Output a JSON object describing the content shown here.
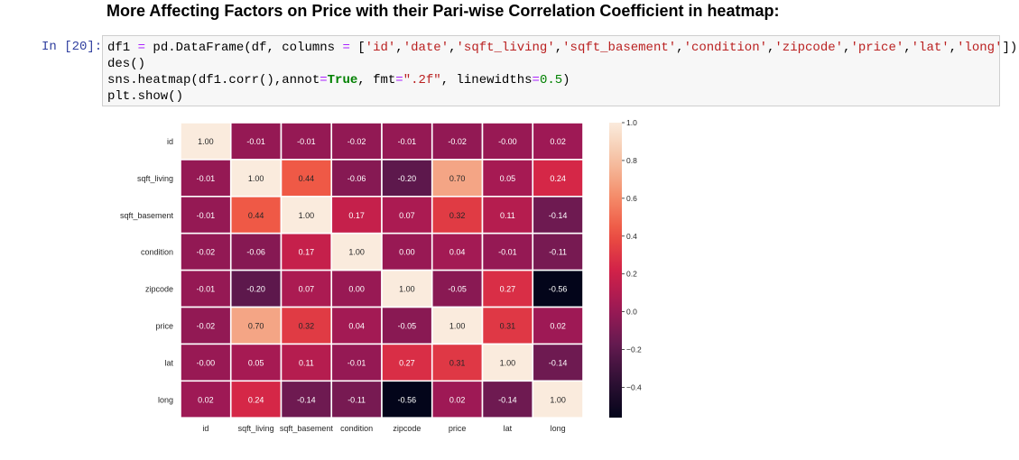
{
  "heading": "More Affecting Factors on Price with their Pari-wise Correlation Coefficient in heatmap:",
  "cell": {
    "prompt": "In [20]:",
    "lines": [
      [
        {
          "t": "df1 "
        },
        {
          "t": "=",
          "k": "op"
        },
        {
          "t": " pd.DataFrame(df, columns "
        },
        {
          "t": "=",
          "k": "op"
        },
        {
          "t": " ["
        },
        {
          "t": "'id'",
          "k": "str"
        },
        {
          "t": ","
        },
        {
          "t": "'date'",
          "k": "str"
        },
        {
          "t": ","
        },
        {
          "t": "'sqft_living'",
          "k": "str"
        },
        {
          "t": ","
        },
        {
          "t": "'sqft_basement'",
          "k": "str"
        },
        {
          "t": ","
        },
        {
          "t": "'condition'",
          "k": "str"
        },
        {
          "t": ","
        },
        {
          "t": "'zipcode'",
          "k": "str"
        },
        {
          "t": ","
        },
        {
          "t": "'price'",
          "k": "str"
        },
        {
          "t": ","
        },
        {
          "t": "'lat'",
          "k": "str"
        },
        {
          "t": ","
        },
        {
          "t": "'long'",
          "k": "str"
        },
        {
          "t": "])"
        }
      ],
      [
        {
          "t": "des()"
        }
      ],
      [
        {
          "t": "sns.heatmap(df1.corr(),annot"
        },
        {
          "t": "=",
          "k": "op"
        },
        {
          "t": "True",
          "k": "kw"
        },
        {
          "t": ", fmt"
        },
        {
          "t": "=",
          "k": "op"
        },
        {
          "t": "\".2f\"",
          "k": "str"
        },
        {
          "t": ", linewidths"
        },
        {
          "t": "=",
          "k": "op"
        },
        {
          "t": "0.5",
          "k": "num"
        },
        {
          "t": ")"
        }
      ],
      [
        {
          "t": "plt.show()"
        }
      ]
    ]
  },
  "chart_data": {
    "type": "heatmap",
    "labels": [
      "id",
      "sqft_living",
      "sqft_basement",
      "condition",
      "zipcode",
      "price",
      "lat",
      "long"
    ],
    "tick_labels_x": [
      "id",
      "sqft_living",
      "sqft_basement",
      "condition",
      "zipcode",
      "price",
      "lat",
      "long"
    ],
    "tick_labels_y": [
      "id",
      "sqft_living",
      "sqft_basement",
      "condition",
      "zipcode",
      "price",
      "lat",
      "long"
    ],
    "value_labels": [
      [
        "1.00",
        "-0.01",
        "-0.01",
        "-0.02",
        "-0.01",
        "-0.02",
        "-0.00",
        "0.02"
      ],
      [
        "-0.01",
        "1.00",
        "0.44",
        "-0.06",
        "-0.20",
        "0.70",
        "0.05",
        "0.24"
      ],
      [
        "-0.01",
        "0.44",
        "1.00",
        "0.17",
        "0.07",
        "0.32",
        "0.11",
        "-0.14"
      ],
      [
        "-0.02",
        "-0.06",
        "0.17",
        "1.00",
        "0.00",
        "0.04",
        "-0.01",
        "-0.11"
      ],
      [
        "-0.01",
        "-0.20",
        "0.07",
        "0.00",
        "1.00",
        "-0.05",
        "0.27",
        "-0.56"
      ],
      [
        "-0.02",
        "0.70",
        "0.32",
        "0.04",
        "-0.05",
        "1.00",
        "0.31",
        "0.02"
      ],
      [
        "-0.00",
        "0.05",
        "0.11",
        "-0.01",
        "0.27",
        "0.31",
        "1.00",
        "-0.14"
      ],
      [
        "0.02",
        "0.24",
        "-0.14",
        "-0.11",
        "-0.56",
        "0.02",
        "-0.14",
        "1.00"
      ]
    ],
    "values": [
      [
        1.0,
        -0.01,
        -0.01,
        -0.02,
        -0.01,
        -0.02,
        -0.0,
        0.02
      ],
      [
        -0.01,
        1.0,
        0.44,
        -0.06,
        -0.2,
        0.7,
        0.05,
        0.24
      ],
      [
        -0.01,
        0.44,
        1.0,
        0.17,
        0.07,
        0.32,
        0.11,
        -0.14
      ],
      [
        -0.02,
        -0.06,
        0.17,
        1.0,
        0.0,
        0.04,
        -0.01,
        -0.11
      ],
      [
        -0.01,
        -0.2,
        0.07,
        0.0,
        1.0,
        -0.05,
        0.27,
        -0.56
      ],
      [
        -0.02,
        0.7,
        0.32,
        0.04,
        -0.05,
        1.0,
        0.31,
        0.02
      ],
      [
        -0.0,
        0.05,
        0.11,
        -0.01,
        0.27,
        0.31,
        1.0,
        -0.14
      ],
      [
        0.02,
        0.24,
        -0.14,
        -0.11,
        -0.56,
        0.02,
        -0.14,
        1.0
      ]
    ],
    "colorbar": {
      "vmin": -0.56,
      "vmax": 1.0,
      "ticks": [
        1.0,
        0.8,
        0.6,
        0.4,
        0.2,
        0.0,
        -0.2,
        -0.4
      ],
      "tick_labels": [
        "1.0",
        "0.8",
        "0.6",
        "0.4",
        "0.2",
        "0.0",
        "−0.2",
        "−0.4"
      ]
    },
    "colormap": "rocket",
    "title": "",
    "xlabel": "",
    "ylabel": ""
  }
}
